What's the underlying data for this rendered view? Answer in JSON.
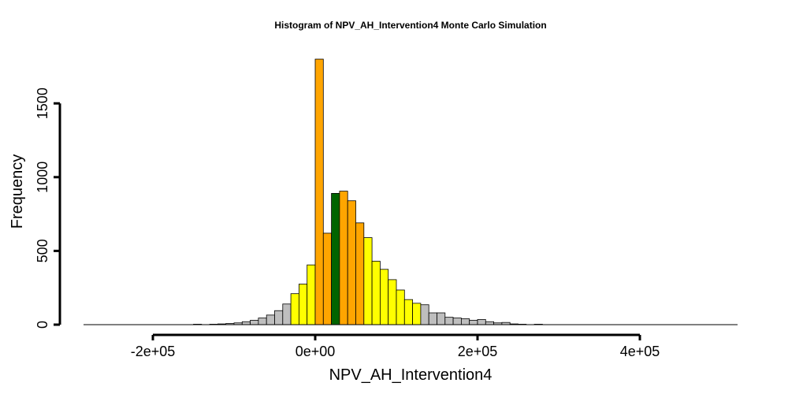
{
  "chart_data": {
    "type": "bar",
    "title": "Histogram of  NPV_AH_Intervention4  Monte Carlo Simulation",
    "xlabel": "NPV_AH_Intervention4",
    "ylabel": "Frequency",
    "xlim": [
      -280000,
      520000
    ],
    "ylim": [
      0,
      1800
    ],
    "x_ticks": [
      -200000,
      0,
      200000,
      400000
    ],
    "x_tick_labels": [
      "-2e+05",
      "0e+00",
      "2e+05",
      "4e+05"
    ],
    "y_ticks": [
      0,
      500,
      1000,
      1500
    ],
    "y_tick_labels": [
      "0",
      "500",
      "1000",
      "1500"
    ],
    "bin_width": 10000,
    "colors": {
      "grey": "#bebebe",
      "yellow": "#ffff00",
      "orange": "#ffa500",
      "green": "#006400",
      "outline": "#000000"
    },
    "bins": [
      {
        "x0": -150000,
        "count": 3,
        "color": "grey"
      },
      {
        "x0": -140000,
        "count": 0,
        "color": "grey"
      },
      {
        "x0": -130000,
        "count": 3,
        "color": "grey"
      },
      {
        "x0": -120000,
        "count": 5,
        "color": "grey"
      },
      {
        "x0": -110000,
        "count": 8,
        "color": "grey"
      },
      {
        "x0": -100000,
        "count": 12,
        "color": "grey"
      },
      {
        "x0": -90000,
        "count": 20,
        "color": "grey"
      },
      {
        "x0": -80000,
        "count": 30,
        "color": "grey"
      },
      {
        "x0": -70000,
        "count": 45,
        "color": "grey"
      },
      {
        "x0": -60000,
        "count": 65,
        "color": "grey"
      },
      {
        "x0": -50000,
        "count": 95,
        "color": "grey"
      },
      {
        "x0": -40000,
        "count": 140,
        "color": "grey"
      },
      {
        "x0": -30000,
        "count": 210,
        "color": "yellow"
      },
      {
        "x0": -20000,
        "count": 275,
        "color": "yellow"
      },
      {
        "x0": -10000,
        "count": 405,
        "color": "yellow"
      },
      {
        "x0": 0,
        "count": 1800,
        "color": "orange"
      },
      {
        "x0": 10000,
        "count": 620,
        "color": "orange"
      },
      {
        "x0": 20000,
        "count": 890,
        "color": "green"
      },
      {
        "x0": 30000,
        "count": 905,
        "color": "orange"
      },
      {
        "x0": 40000,
        "count": 840,
        "color": "orange"
      },
      {
        "x0": 50000,
        "count": 690,
        "color": "orange"
      },
      {
        "x0": 60000,
        "count": 590,
        "color": "yellow"
      },
      {
        "x0": 70000,
        "count": 430,
        "color": "yellow"
      },
      {
        "x0": 80000,
        "count": 375,
        "color": "yellow"
      },
      {
        "x0": 90000,
        "count": 305,
        "color": "yellow"
      },
      {
        "x0": 100000,
        "count": 235,
        "color": "yellow"
      },
      {
        "x0": 110000,
        "count": 170,
        "color": "yellow"
      },
      {
        "x0": 120000,
        "count": 145,
        "color": "yellow"
      },
      {
        "x0": 130000,
        "count": 135,
        "color": "grey"
      },
      {
        "x0": 140000,
        "count": 80,
        "color": "grey"
      },
      {
        "x0": 150000,
        "count": 80,
        "color": "grey"
      },
      {
        "x0": 160000,
        "count": 50,
        "color": "grey"
      },
      {
        "x0": 170000,
        "count": 45,
        "color": "grey"
      },
      {
        "x0": 180000,
        "count": 40,
        "color": "grey"
      },
      {
        "x0": 190000,
        "count": 30,
        "color": "grey"
      },
      {
        "x0": 200000,
        "count": 35,
        "color": "grey"
      },
      {
        "x0": 210000,
        "count": 20,
        "color": "grey"
      },
      {
        "x0": 220000,
        "count": 12,
        "color": "grey"
      },
      {
        "x0": 230000,
        "count": 15,
        "color": "grey"
      },
      {
        "x0": 240000,
        "count": 5,
        "color": "grey"
      },
      {
        "x0": 250000,
        "count": 3,
        "color": "grey"
      },
      {
        "x0": 260000,
        "count": 0,
        "color": "grey"
      },
      {
        "x0": 270000,
        "count": 3,
        "color": "grey"
      }
    ]
  }
}
